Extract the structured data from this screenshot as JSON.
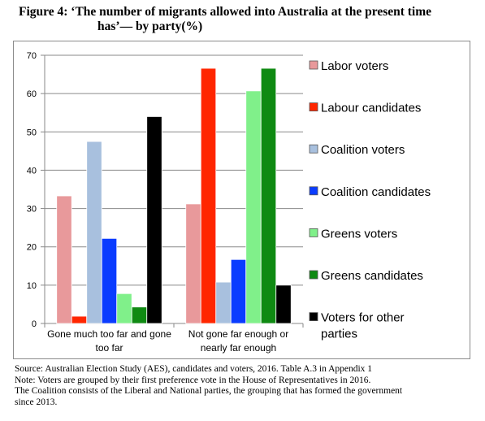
{
  "figure": {
    "title_line1": "Figure 4: ‘The number of migrants allowed into Australia at the present time",
    "title_line2": "has’— by party(%)"
  },
  "chart_data": {
    "type": "bar",
    "categories": [
      [
        "Gone much too far and gone",
        "too far"
      ],
      [
        "Not gone far enough or",
        "nearly far enough"
      ]
    ],
    "series": [
      {
        "name": "Labor voters",
        "values": [
          33.3,
          31.2
        ],
        "color": "#e8999b"
      },
      {
        "name": "Labour candidates",
        "values": [
          1.9,
          66.6
        ],
        "color": "#ff2600"
      },
      {
        "name": "Coalition voters",
        "values": [
          47.5,
          10.8
        ],
        "color": "#a8c0de"
      },
      {
        "name": "Coalition candidates",
        "values": [
          22.2,
          16.7
        ],
        "color": "#0a3cff"
      },
      {
        "name": "Greens voters",
        "values": [
          7.8,
          60.7
        ],
        "color": "#80f08a"
      },
      {
        "name": "Greens candidates",
        "values": [
          4.3,
          66.6
        ],
        "color": "#0f8a12"
      },
      {
        "name": "Voters for other parties",
        "values": [
          54.0,
          10.0
        ],
        "color": "#000000"
      }
    ],
    "legend_lines": [
      [
        "Labor voters"
      ],
      [
        "Labour candidates"
      ],
      [
        "Coalition voters"
      ],
      [
        "Coalition candidates"
      ],
      [
        "Greens voters"
      ],
      [
        "Greens candidates"
      ],
      [
        "Voters for other",
        "parties"
      ]
    ],
    "ylim": [
      0,
      70
    ],
    "yticks": [
      0,
      10,
      20,
      30,
      40,
      50,
      60,
      70
    ],
    "grid": true,
    "legend": "right"
  },
  "notes": {
    "source": "Source: Australian Election Study (AES), candidates and voters, 2016. Table A.3 in Appendix 1",
    "note": "Note: Voters are grouped by their first preference vote in the House of Representatives in 2016.",
    "coalition": "The Coalition consists of the Liberal and National parties, the grouping that has formed the government",
    "since": "since 2013."
  }
}
